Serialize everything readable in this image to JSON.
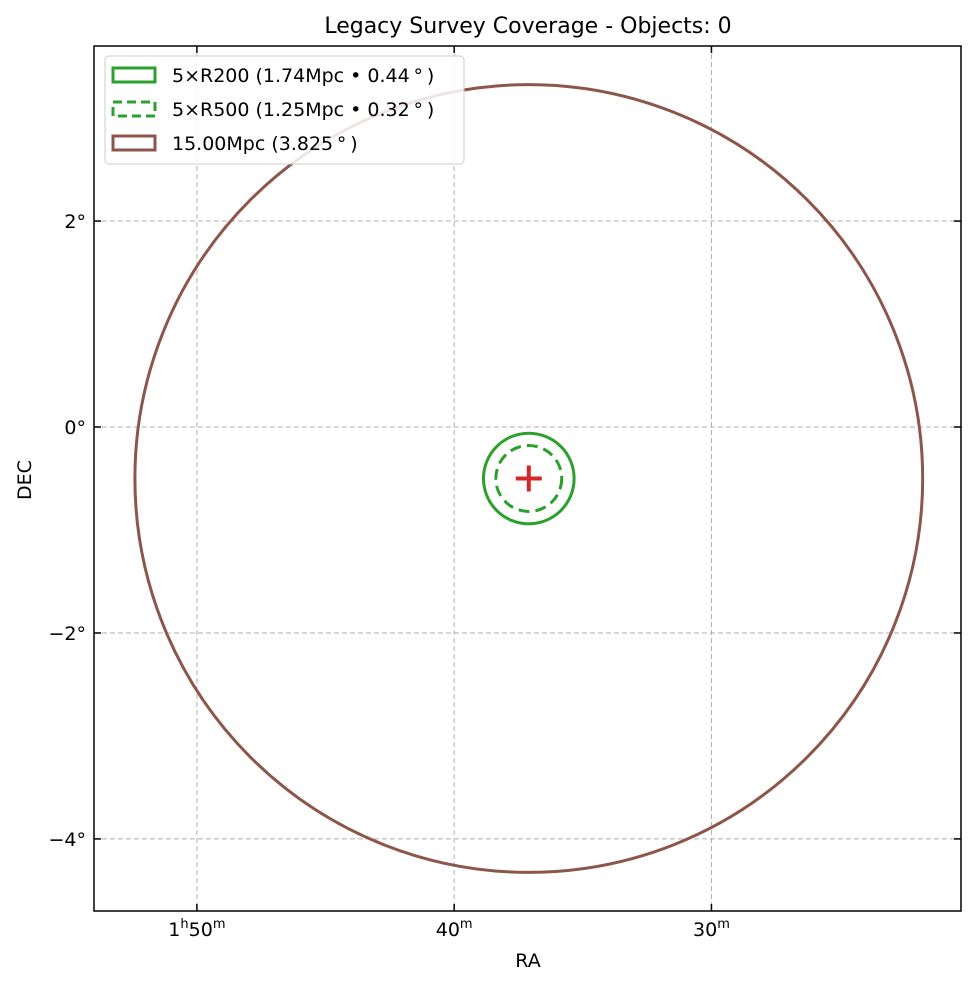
{
  "chart_data": {
    "type": "scatter",
    "title": "Legacy Survey Coverage - Objects: 0",
    "xlabel": "RA",
    "ylabel": "DEC",
    "grid": true,
    "x_axis_inverted": true,
    "xlim_ra_minutes": [
      54,
      20.3
    ],
    "ylim_deg": [
      -4.7,
      3.7
    ],
    "x_ticks": [
      {
        "value": 50,
        "label_main": "1",
        "label_sup_h": "h",
        "label_min": "50",
        "label_sup_m": "m"
      },
      {
        "value": 40,
        "label_main": "",
        "label_sup_h": "",
        "label_min": "40",
        "label_sup_m": "m"
      },
      {
        "value": 30,
        "label_main": "",
        "label_sup_h": "",
        "label_min": "30",
        "label_sup_m": "m"
      }
    ],
    "y_ticks": [
      {
        "value": 2,
        "label": "2°"
      },
      {
        "value": 0,
        "label": "0°"
      },
      {
        "value": -2,
        "label": "−2°"
      },
      {
        "value": -4,
        "label": "−4°"
      }
    ],
    "center": {
      "ra_minutes": 37.1,
      "dec_deg": -0.5,
      "marker": "+",
      "color": "#d62728"
    },
    "circles": [
      {
        "name": "5×R200",
        "radius_deg": 0.44,
        "style": "solid",
        "color": "#2ca02c",
        "label": "5×R200 (1.74Mpc • 0.44$^\\circ$)"
      },
      {
        "name": "5×R500",
        "radius_deg": 0.32,
        "style": "dashed",
        "color": "#2ca02c",
        "label": "5×R500 (1.25Mpc • 0.32$^\\circ$)"
      },
      {
        "name": "15.00Mpc",
        "radius_deg": 3.825,
        "style": "solid",
        "color": "#8c564b",
        "label": "15.00Mpc (3.825$^\\circ$)"
      }
    ],
    "legend": {
      "placement": "top-left",
      "entries": [
        {
          "text": "5×R200 (1.74Mpc • 0.44",
          "suffix": "$^\\circ$)"
        },
        {
          "text": "5×R500 (1.25Mpc • 0.32",
          "suffix": "$^\\circ$)"
        },
        {
          "text": "15.00Mpc (3.825",
          "suffix": "$^\\circ$)"
        }
      ]
    }
  }
}
